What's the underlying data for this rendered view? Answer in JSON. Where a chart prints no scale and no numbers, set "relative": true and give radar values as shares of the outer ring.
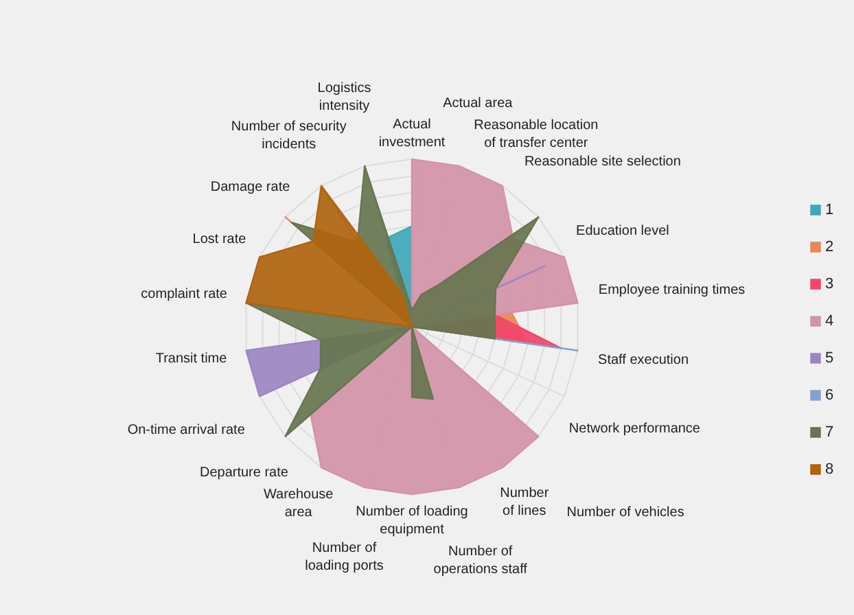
{
  "chart_data": {
    "type": "radar",
    "relative": true,
    "grid": true,
    "legend": "right",
    "categories": [
      "Actual investment",
      "Actual area",
      "Reasonable location of transfer center",
      "Reasonable site selection",
      "Education level",
      "Employee training times",
      "Staff execution",
      "Network performance",
      "Number of vehicles",
      "Number of lines",
      "Number of operations staff",
      "Number of loading equipment",
      "Number of loading ports",
      "Warehouse area",
      "Departure rate",
      "On-time arrival rate",
      "Transit time",
      "complaint rate",
      "Lost rate",
      "Damage rate",
      "Number of security incidents",
      "Logistics intensity"
    ],
    "series": [
      {
        "name": "1",
        "color": "#3ea7b8",
        "values": [
          0.6,
          null,
          null,
          null,
          null,
          null,
          null,
          null,
          null,
          null,
          null,
          null,
          null,
          null,
          null,
          null,
          null,
          null,
          null,
          null,
          null,
          0.55
        ]
      },
      {
        "name": "2",
        "color": "#e8875a",
        "values": [
          null,
          null,
          null,
          null,
          null,
          0.6,
          0.7,
          null,
          null,
          null,
          null,
          null,
          null,
          null,
          null,
          null,
          null,
          null,
          null,
          1.0,
          null,
          null
        ]
      },
      {
        "name": "3",
        "color": "#f0476a",
        "values": [
          null,
          null,
          null,
          null,
          null,
          0.5,
          0.9,
          null,
          null,
          null,
          null,
          null,
          null,
          null,
          null,
          null,
          null,
          null,
          null,
          null,
          null,
          null
        ]
      },
      {
        "name": "4",
        "color": "#d393a8",
        "values": [
          1.0,
          1.0,
          1.0,
          0.8,
          1.0,
          1.0,
          null,
          null,
          1.0,
          1.0,
          1.0,
          1.0,
          1.0,
          1.0,
          0.8,
          null,
          null,
          null,
          null,
          null,
          null,
          null
        ]
      },
      {
        "name": "5",
        "color": "#9d85c2",
        "values": [
          null,
          null,
          null,
          null,
          0.87,
          null,
          null,
          null,
          null,
          null,
          null,
          null,
          null,
          null,
          null,
          1.0,
          1.0,
          null,
          null,
          null,
          null,
          null
        ]
      },
      {
        "name": "6",
        "color": "#7fa3cf",
        "values": [
          null,
          null,
          null,
          null,
          0.5,
          null,
          1.0,
          null,
          null,
          null,
          null,
          null,
          null,
          null,
          null,
          0.6,
          null,
          null,
          null,
          null,
          1.0,
          null
        ]
      },
      {
        "name": "7",
        "color": "#67754f",
        "values": [
          0.1,
          0.2,
          0.3,
          1.0,
          0.55,
          0.5,
          0.5,
          null,
          null,
          null,
          0.45,
          0.42,
          null,
          null,
          1.0,
          0.6,
          0.55,
          1.0,
          null,
          0.95,
          0.6,
          1.0
        ]
      },
      {
        "name": "8",
        "color": "#b0640f",
        "values": [
          null,
          null,
          null,
          null,
          null,
          null,
          null,
          null,
          null,
          null,
          null,
          null,
          null,
          null,
          null,
          null,
          null,
          1.0,
          1.0,
          0.78,
          1.0,
          0.2
        ]
      }
    ]
  }
}
